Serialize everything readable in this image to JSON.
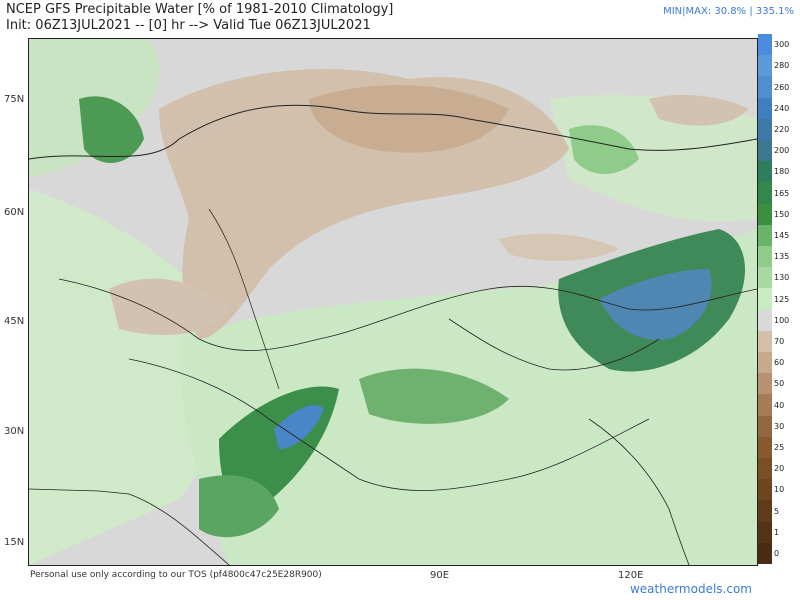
{
  "header": {
    "title_line1": "NCEP GFS Precipitable Water [% of 1981-2010 Climatology]",
    "title_line2": "Init: 06Z13JUL2021 -- [0] hr --> Valid Tue 06Z13JUL2021",
    "minmax": "MIN|MAX: 30.8% | 335.1%"
  },
  "axes": {
    "lat_labels": [
      "75N",
      "60N",
      "45N",
      "30N",
      "15N"
    ],
    "lon_labels": [
      "90E",
      "120E"
    ]
  },
  "footer": {
    "note": "Personal use only according to our TOS (pf4800c47c25E28R900)",
    "site": "weathermodels.com"
  },
  "colorbar": {
    "labels": [
      "300",
      "280",
      "260",
      "240",
      "220",
      "200",
      "180",
      "165",
      "150",
      "145",
      "135",
      "130",
      "125",
      "100",
      "70",
      "60",
      "50",
      "40",
      "30",
      "25",
      "20",
      "10",
      "5",
      "1",
      "0"
    ],
    "colors": [
      "#4a8ce0",
      "#5b9ad8",
      "#4f8fcf",
      "#3f7fbf",
      "#3f79a8",
      "#3f7790",
      "#2f7d5c",
      "#34864a",
      "#3c8f3f",
      "#6bb36a",
      "#8fcb89",
      "#a9d9a3",
      "#c9ebc4",
      "#d9d9d9",
      "#d3c0aa",
      "#c7aa8c",
      "#b89270",
      "#a67b58",
      "#93673f",
      "#86592f",
      "#7a4f26",
      "#6d451f",
      "#603b1a",
      "#553316",
      "#4a2c13"
    ]
  }
}
